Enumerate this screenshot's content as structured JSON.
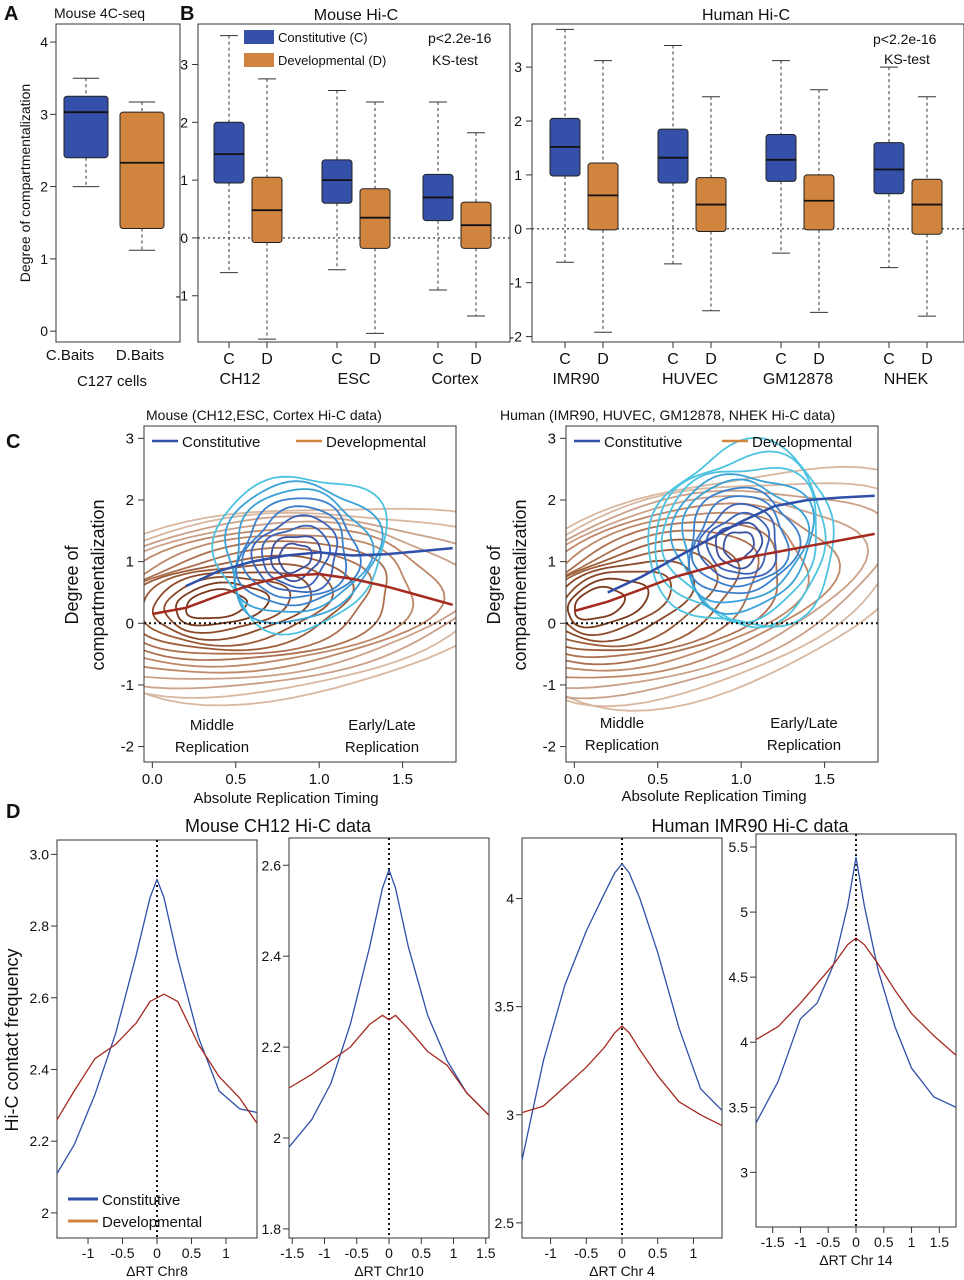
{
  "colors": {
    "constitutive": "#3550a8",
    "developmental": "#d1843e",
    "constitutive_line": "#2f4fa8",
    "developmental_line": "#a52a20",
    "contour_blue": [
      "#3a4fa0",
      "#3a63b8",
      "#3a80cc",
      "#39a2d8",
      "#4cc3e0"
    ],
    "contour_brown": [
      "#7a3a1e",
      "#8b4a2a",
      "#9c5c38",
      "#ad7050",
      "#be8868",
      "#cba088",
      "#d8b8a0"
    ]
  },
  "panel_labels": {
    "a": "A",
    "b": "B",
    "c": "C",
    "d": "D"
  },
  "panelA": {
    "title": "Mouse 4C-seq",
    "ylabel": "Degree of compartmentalization",
    "xlabels": [
      "C.Baits",
      "D.Baits"
    ],
    "xsub": "C127 cells"
  },
  "panelB": {
    "mouse_title": "Mouse Hi-C",
    "human_title": "Human Hi-C",
    "legend": [
      "Constitutive (C)",
      "Developmental (D)"
    ],
    "stat_p": "p<2.2e-16",
    "stat_test": "KS-test",
    "mouse_groups": [
      "CH12",
      "ESC",
      "Cortex"
    ],
    "human_groups": [
      "IMR90",
      "HUVEC",
      "GM12878",
      "NHEK"
    ],
    "cd_labels": [
      "C",
      "D"
    ]
  },
  "panelC": {
    "mouse_title": "Mouse (CH12,ESC, Cortex Hi-C data)",
    "human_title": "Human (IMR90, HUVEC, GM12878, NHEK Hi-C data)",
    "legend": [
      "Constitutive",
      "Developmental"
    ],
    "ylabel_line1": "Degree of",
    "ylabel_line2": "compartmentalization",
    "xlabel": "Absolute Replication  Timing",
    "ann_mid1": "Middle",
    "ann_mid2": "Replication",
    "ann_late1": "Early/Late",
    "ann_late2": "Replication"
  },
  "panelD": {
    "mouse_title": "Mouse CH12 Hi-C data",
    "human_title": "Human IMR90 Hi-C data",
    "ylabel": "Hi-C contact frequency",
    "legend": [
      "Constitutive",
      "Developmental"
    ],
    "xlabels": [
      "ΔRT Chr8",
      "ΔRT Chr10",
      "ΔRT Chr 4",
      "ΔRT Chr 14"
    ]
  },
  "chart_data": [
    {
      "type": "box",
      "id": "A",
      "title": "Mouse 4C-seq",
      "ylabel": "Degree of compartmentalization",
      "categories": [
        "C.Baits",
        "D.Baits"
      ],
      "ylim": [
        -0.15,
        4.25
      ],
      "yticks": [
        0,
        1,
        2,
        3,
        4
      ],
      "boxes": [
        {
          "label": "C.Baits",
          "group": "C",
          "min": 2.0,
          "q1": 2.4,
          "median": 3.03,
          "q3": 3.25,
          "max": 3.5
        },
        {
          "label": "D.Baits",
          "group": "D",
          "min": 1.12,
          "q1": 1.42,
          "median": 2.33,
          "q3": 3.03,
          "max": 3.17
        }
      ]
    },
    {
      "type": "box",
      "id": "B-mouse",
      "title": "Mouse Hi-C",
      "ylim": [
        -1.8,
        3.7
      ],
      "yticks": [
        -1,
        0,
        1,
        2,
        3
      ],
      "groups": [
        "CH12",
        "ESC",
        "Cortex"
      ],
      "series": [
        {
          "name": "Constitutive (C)",
          "boxes": [
            {
              "min": -0.6,
              "q1": 0.95,
              "median": 1.45,
              "q3": 2.0,
              "max": 3.5
            },
            {
              "min": -0.55,
              "q1": 0.6,
              "median": 1.0,
              "q3": 1.35,
              "max": 2.55
            },
            {
              "min": -0.9,
              "q1": 0.3,
              "median": 0.7,
              "q3": 1.1,
              "max": 2.35
            }
          ]
        },
        {
          "name": "Developmental (D)",
          "boxes": [
            {
              "min": -1.75,
              "q1": -0.08,
              "median": 0.48,
              "q3": 1.05,
              "max": 2.75
            },
            {
              "min": -1.65,
              "q1": -0.18,
              "median": 0.35,
              "q3": 0.85,
              "max": 2.35
            },
            {
              "min": -1.35,
              "q1": -0.18,
              "median": 0.22,
              "q3": 0.62,
              "max": 1.82
            }
          ]
        }
      ]
    },
    {
      "type": "box",
      "id": "B-human",
      "title": "Human Hi-C",
      "ylim": [
        -2.1,
        3.8
      ],
      "yticks": [
        -2,
        -1,
        0,
        1,
        2,
        3
      ],
      "groups": [
        "IMR90",
        "HUVEC",
        "GM12878",
        "NHEK"
      ],
      "series": [
        {
          "name": "Constitutive (C)",
          "boxes": [
            {
              "min": -0.62,
              "q1": 0.98,
              "median": 1.52,
              "q3": 2.05,
              "max": 3.7
            },
            {
              "min": -0.65,
              "q1": 0.85,
              "median": 1.32,
              "q3": 1.85,
              "max": 3.4
            },
            {
              "min": -0.45,
              "q1": 0.88,
              "median": 1.28,
              "q3": 1.75,
              "max": 3.12
            },
            {
              "min": -0.72,
              "q1": 0.65,
              "median": 1.1,
              "q3": 1.6,
              "max": 3.0
            }
          ]
        },
        {
          "name": "Developmental (D)",
          "boxes": [
            {
              "min": -1.92,
              "q1": -0.02,
              "median": 0.62,
              "q3": 1.22,
              "max": 3.12
            },
            {
              "min": -1.52,
              "q1": -0.05,
              "median": 0.45,
              "q3": 0.95,
              "max": 2.45
            },
            {
              "min": -1.55,
              "q1": -0.02,
              "median": 0.52,
              "q3": 1.0,
              "max": 2.58
            },
            {
              "min": -1.62,
              "q1": -0.1,
              "median": 0.45,
              "q3": 0.92,
              "max": 2.45
            }
          ]
        }
      ]
    },
    {
      "type": "line",
      "id": "C-mouse",
      "title": "Mouse (CH12,ESC, Cortex Hi-C data)",
      "xlabel": "Absolute Replication  Timing",
      "ylabel": "Degree of compartmentalization",
      "xlim": [
        -0.05,
        1.82
      ],
      "ylim": [
        -2.25,
        3.2
      ],
      "xticks": [
        0.0,
        0.5,
        1.0,
        1.5
      ],
      "yticks": [
        -2,
        -1,
        0,
        1,
        2,
        3
      ],
      "series": [
        {
          "name": "Constitutive",
          "x": [
            0.2,
            0.4,
            0.6,
            0.8,
            1.0,
            1.2,
            1.4,
            1.6,
            1.8
          ],
          "y": [
            0.6,
            0.85,
            1.0,
            1.1,
            1.15,
            1.1,
            1.12,
            1.17,
            1.22
          ]
        },
        {
          "name": "Developmental",
          "x": [
            0.0,
            0.2,
            0.4,
            0.6,
            0.8,
            1.0,
            1.2,
            1.4,
            1.6,
            1.8
          ],
          "y": [
            0.15,
            0.25,
            0.45,
            0.63,
            0.77,
            0.8,
            0.72,
            0.6,
            0.45,
            0.3
          ]
        }
      ],
      "density_contours": {
        "constitutive": {
          "center": [
            0.85,
            1.05
          ],
          "levels": 9
        },
        "developmental": {
          "center": [
            0.35,
            0.3
          ],
          "levels": 14
        }
      }
    },
    {
      "type": "line",
      "id": "C-human",
      "title": "Human (IMR90, HUVEC, GM12878, NHEK Hi-C data)",
      "xlabel": "Absolute Replication  Timing",
      "ylabel": "Degree of compartmentalization",
      "xlim": [
        -0.05,
        1.82
      ],
      "ylim": [
        -2.25,
        3.2
      ],
      "xticks": [
        0.0,
        0.5,
        1.0,
        1.5
      ],
      "yticks": [
        -2,
        -1,
        0,
        1,
        2,
        3
      ],
      "series": [
        {
          "name": "Constitutive",
          "x": [
            0.2,
            0.4,
            0.6,
            0.8,
            1.0,
            1.2,
            1.4,
            1.6,
            1.8
          ],
          "y": [
            0.5,
            0.75,
            1.05,
            1.35,
            1.65,
            1.9,
            2.0,
            2.04,
            2.07
          ]
        },
        {
          "name": "Developmental",
          "x": [
            0.0,
            0.2,
            0.4,
            0.6,
            0.8,
            1.0,
            1.2,
            1.4,
            1.6,
            1.8
          ],
          "y": [
            0.2,
            0.35,
            0.55,
            0.75,
            0.9,
            1.05,
            1.15,
            1.25,
            1.35,
            1.45
          ]
        }
      ],
      "density_contours": {
        "constitutive": {
          "center": [
            0.98,
            1.25
          ],
          "levels": 11
        },
        "developmental": {
          "center": [
            0.1,
            0.3
          ],
          "levels": 14
        }
      }
    },
    {
      "type": "line",
      "id": "D-chr8",
      "xlabel": "ΔRT Chr8",
      "ylabel": "Hi-C contact frequency",
      "xlim": [
        -1.45,
        1.45
      ],
      "ylim": [
        1.93,
        3.04
      ],
      "xticks": [
        -1,
        -0.5,
        0,
        0.5,
        1
      ],
      "yticks": [
        2,
        2.2,
        2.4,
        2.6,
        2.8,
        3.0
      ],
      "ytick_labels": [
        "2",
        "2.2",
        "2.4",
        "2.6",
        "2.8",
        "3.0"
      ],
      "series": [
        {
          "name": "Constitutive",
          "x": [
            -1.45,
            -1.2,
            -0.9,
            -0.6,
            -0.3,
            -0.1,
            0.0,
            0.1,
            0.3,
            0.6,
            0.9,
            1.2,
            1.45
          ],
          "y": [
            2.11,
            2.19,
            2.33,
            2.5,
            2.72,
            2.88,
            2.93,
            2.88,
            2.71,
            2.49,
            2.34,
            2.29,
            2.28
          ]
        },
        {
          "name": "Developmental",
          "x": [
            -1.45,
            -1.2,
            -0.9,
            -0.6,
            -0.3,
            -0.1,
            0.0,
            0.1,
            0.3,
            0.6,
            0.9,
            1.2,
            1.45
          ],
          "y": [
            2.26,
            2.34,
            2.43,
            2.47,
            2.53,
            2.59,
            2.6,
            2.61,
            2.59,
            2.47,
            2.38,
            2.32,
            2.25
          ]
        }
      ]
    },
    {
      "type": "line",
      "id": "D-chr10",
      "xlabel": "ΔRT Chr10",
      "xlim": [
        -1.55,
        1.55
      ],
      "ylim": [
        1.78,
        2.66
      ],
      "xticks": [
        -1.5,
        -1,
        -0.5,
        0,
        0.5,
        1,
        1.5
      ],
      "yticks": [
        1.8,
        2,
        2.2,
        2.4,
        2.6
      ],
      "ytick_labels": [
        "1.8",
        "2",
        "2.2",
        "2.4",
        "2.6"
      ],
      "series": [
        {
          "name": "Constitutive",
          "x": [
            -1.55,
            -1.2,
            -0.9,
            -0.6,
            -0.3,
            -0.1,
            0.0,
            0.1,
            0.3,
            0.6,
            0.9,
            1.2,
            1.55
          ],
          "y": [
            1.98,
            2.04,
            2.12,
            2.25,
            2.42,
            2.55,
            2.59,
            2.55,
            2.42,
            2.27,
            2.17,
            2.1,
            2.05
          ]
        },
        {
          "name": "Developmental",
          "x": [
            -1.55,
            -1.2,
            -0.9,
            -0.6,
            -0.3,
            -0.1,
            0.0,
            0.1,
            0.3,
            0.6,
            0.9,
            1.2,
            1.55
          ],
          "y": [
            2.11,
            2.14,
            2.17,
            2.2,
            2.25,
            2.27,
            2.26,
            2.27,
            2.24,
            2.19,
            2.16,
            2.1,
            2.05
          ]
        }
      ]
    },
    {
      "type": "line",
      "id": "D-chr4",
      "xlabel": "ΔRT Chr 4",
      "xlim": [
        -1.4,
        1.4
      ],
      "ylim": [
        2.43,
        4.28
      ],
      "xticks": [
        -1,
        -0.5,
        0,
        0.5,
        1
      ],
      "yticks": [
        2.5,
        3,
        3.5,
        4
      ],
      "ytick_labels": [
        "2.5",
        "3",
        "3.5",
        "4"
      ],
      "series": [
        {
          "name": "Constitutive",
          "x": [
            -1.4,
            -1.1,
            -0.8,
            -0.5,
            -0.25,
            -0.1,
            0.0,
            0.1,
            0.25,
            0.5,
            0.8,
            1.1,
            1.4
          ],
          "y": [
            2.79,
            3.25,
            3.6,
            3.85,
            4.02,
            4.12,
            4.16,
            4.12,
            4.0,
            3.75,
            3.4,
            3.12,
            3.02
          ]
        },
        {
          "name": "Developmental",
          "x": [
            -1.4,
            -1.1,
            -0.8,
            -0.5,
            -0.25,
            -0.1,
            0.0,
            0.1,
            0.25,
            0.5,
            0.8,
            1.1,
            1.4
          ],
          "y": [
            3.01,
            3.04,
            3.13,
            3.22,
            3.31,
            3.38,
            3.41,
            3.38,
            3.3,
            3.18,
            3.06,
            3.0,
            2.95
          ]
        }
      ]
    },
    {
      "type": "line",
      "id": "D-chr14",
      "xlabel": "ΔRT Chr 14",
      "xlim": [
        -1.8,
        1.8
      ],
      "ylim": [
        2.58,
        5.6
      ],
      "xticks": [
        -1.5,
        -1,
        -0.5,
        0,
        0.5,
        1,
        1.5
      ],
      "yticks": [
        3,
        3.5,
        4,
        4.5,
        5,
        5.5
      ],
      "ytick_labels": [
        "3",
        "3.5",
        "4",
        "4.5",
        "5",
        "5.5"
      ],
      "series": [
        {
          "name": "Constitutive",
          "x": [
            -1.8,
            -1.4,
            -1.0,
            -0.7,
            -0.4,
            -0.15,
            0.0,
            0.15,
            0.4,
            0.7,
            1.0,
            1.4,
            1.8
          ],
          "y": [
            3.38,
            3.7,
            4.18,
            4.3,
            4.6,
            5.05,
            5.42,
            5.05,
            4.55,
            4.12,
            3.8,
            3.58,
            3.5
          ]
        },
        {
          "name": "Developmental",
          "x": [
            -1.8,
            -1.4,
            -1.0,
            -0.7,
            -0.4,
            -0.15,
            0.0,
            0.15,
            0.4,
            0.7,
            1.0,
            1.4,
            1.8
          ],
          "y": [
            4.02,
            4.12,
            4.3,
            4.45,
            4.6,
            4.75,
            4.8,
            4.75,
            4.6,
            4.4,
            4.22,
            4.05,
            3.9
          ]
        }
      ]
    }
  ]
}
